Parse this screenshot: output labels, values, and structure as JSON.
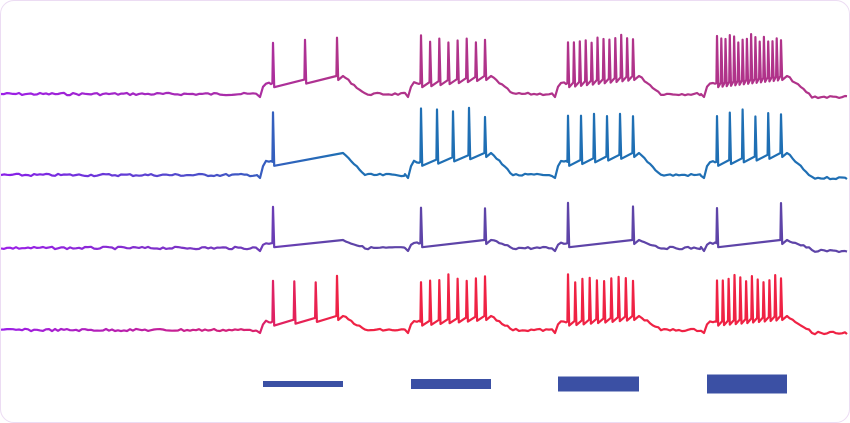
{
  "figure": {
    "background": "#ffffff",
    "frame_color": "#ecdcf3",
    "bar_color": "#3b50a4",
    "traces": [
      {
        "name": "trace-1",
        "color_start": "#9b1fe8",
        "color_end": "#b0338a",
        "bursts": [
          {
            "spikes": 3,
            "amplitude": "large"
          },
          {
            "spikes": 8,
            "amplitude": "large"
          },
          {
            "spikes": 12,
            "amplitude": "large"
          },
          {
            "spikes": 16,
            "amplitude": "large"
          }
        ]
      },
      {
        "name": "trace-2",
        "color_start": "#8a1fe8",
        "color_end": "#1f6fb4",
        "bursts": [
          {
            "spikes": 1
          },
          {
            "spikes": 5
          },
          {
            "spikes": 6
          },
          {
            "spikes": 6
          }
        ]
      },
      {
        "name": "trace-3",
        "color_start": "#9b1fe8",
        "color_end": "#5e44a8",
        "bursts": [
          {
            "spikes": 1
          },
          {
            "spikes": 2
          },
          {
            "spikes": 2
          },
          {
            "spikes": 2
          }
        ]
      },
      {
        "name": "trace-4",
        "color_start": "#9b1fe8",
        "color_end": "#ef2244",
        "bursts": [
          {
            "spikes": 4
          },
          {
            "spikes": 8
          },
          {
            "spikes": 10
          },
          {
            "spikes": 12
          }
        ]
      }
    ],
    "stimulus_bars": [
      {
        "intensity_level": 1
      },
      {
        "intensity_level": 2
      },
      {
        "intensity_level": 3
      },
      {
        "intensity_level": 4
      }
    ]
  }
}
